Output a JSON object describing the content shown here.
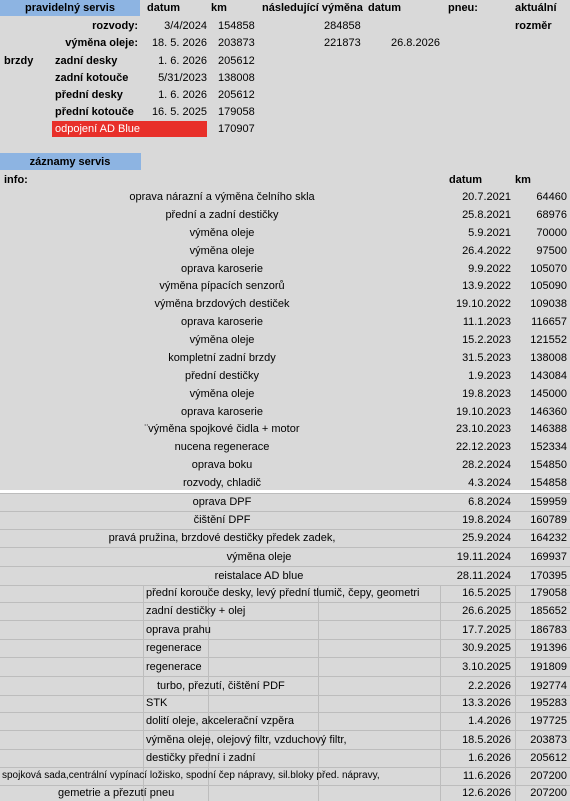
{
  "header": {
    "title": "pravidelný servis",
    "col_date": "datum",
    "col_km": "km",
    "col_next": "následující výměna",
    "col_next_date": "datum",
    "col_tyres": "pneu:",
    "col_current": "aktuální",
    "current_size": "rozměr"
  },
  "regular": [
    {
      "label": "rozvody:",
      "date": "3/4/2024",
      "km": 154858,
      "next_km": 284858
    },
    {
      "label": "výměna oleje:",
      "date": "18. 5. 2026",
      "km": 203873,
      "next_km": 221873,
      "next_date": "26.8.2026"
    }
  ],
  "brakes": {
    "label": "brzdy",
    "items": [
      {
        "label": "zadní desky",
        "date": "1. 6. 2026",
        "km": 205612
      },
      {
        "label": "zadní kotouče",
        "date": "5/31/2023",
        "km": 138008
      },
      {
        "label": "přední desky",
        "date": "1. 6. 2026",
        "km": 205612
      },
      {
        "label": "přední kotouče",
        "date": "16. 5. 2025",
        "km": 179058
      }
    ]
  },
  "adblue": {
    "label": "odpojení AD Blue",
    "km": 170907
  },
  "records": {
    "title": "záznamy servis",
    "col_info": "info:",
    "col_date": "datum",
    "col_km": "km",
    "rows": [
      [
        "oprava nárazní a výměna čelního skla",
        "20.7.2021",
        64460
      ],
      [
        "přední a zadní destičky",
        "25.8.2021",
        68976
      ],
      [
        "výměna oleje",
        "5.9.2021",
        70000
      ],
      [
        "výměna oleje",
        "26.4.2022",
        97500
      ],
      [
        "oprava karoserie",
        "9.9.2022",
        105070
      ],
      [
        "výměna pípacích senzorů",
        "13.9.2022",
        105090
      ],
      [
        "výměna brzdových destiček",
        "19.10.2022",
        109038
      ],
      [
        "oprava karoserie",
        "11.1.2023",
        116657
      ],
      [
        "výměna oleje",
        "15.2.2023",
        121552
      ],
      [
        "kompletní zadní brzdy",
        "31.5.2023",
        138008
      ],
      [
        "přední destičky",
        "1.9.2023",
        143084
      ],
      [
        "výměna oleje",
        "19.8.2023",
        145000
      ],
      [
        "oprava karoserie",
        "19.10.2023",
        146360
      ],
      [
        "¨výměna spojkové čidla + motor",
        "23.10.2023",
        146388
      ],
      [
        "nucena regenerace",
        "22.12.2023",
        152334
      ],
      [
        "oprava boku",
        "28.2.2024",
        154850
      ],
      [
        "rozvody, chladič",
        "4.3.2024",
        154858
      ],
      [
        "oprava DPF",
        "6.8.2024",
        159959
      ],
      [
        "čištění DPF",
        "19.8.2024",
        160789
      ],
      [
        "pravá pružina, brzdové destičky předek zadek,",
        "25.9.2024",
        164232
      ],
      [
        "výměna oleje",
        "19.11.2024",
        169937
      ],
      [
        "reistalace AD blue",
        "28.11.2024",
        170395
      ],
      [
        "přední korouče desky, levý přední tlumič, čepy, geometri",
        "16.5.2025",
        179058
      ],
      [
        "zadní destičky + olej",
        "26.6.2025",
        185652
      ],
      [
        "oprava prahu",
        "17.7.2025",
        186783
      ],
      [
        "regenerace",
        "30.9.2025",
        191396
      ],
      [
        "regenerace",
        "3.10.2025",
        191809
      ],
      [
        "turbo, přezutí, čištění PDF",
        "2.2.2026",
        192774
      ],
      [
        "STK",
        "13.3.2026",
        195283
      ],
      [
        "dolití oleje, akcelerační vzpěra",
        "1.4.2026",
        197725
      ],
      [
        "výměna oleje, olejový filtr, vzduchový filtr,",
        "18.5.2026",
        203873
      ],
      [
        "destičky přední i zadní",
        "1.6.2026",
        205612
      ],
      [
        "spojková sada,centrální vypínací ložisko, spodní čep nápravy, sil.bloky před. nápravy,",
        "11.6.2026",
        207200
      ],
      [
        "gemetrie a přezutí pneu",
        "12.6.2026",
        207200
      ]
    ]
  }
}
